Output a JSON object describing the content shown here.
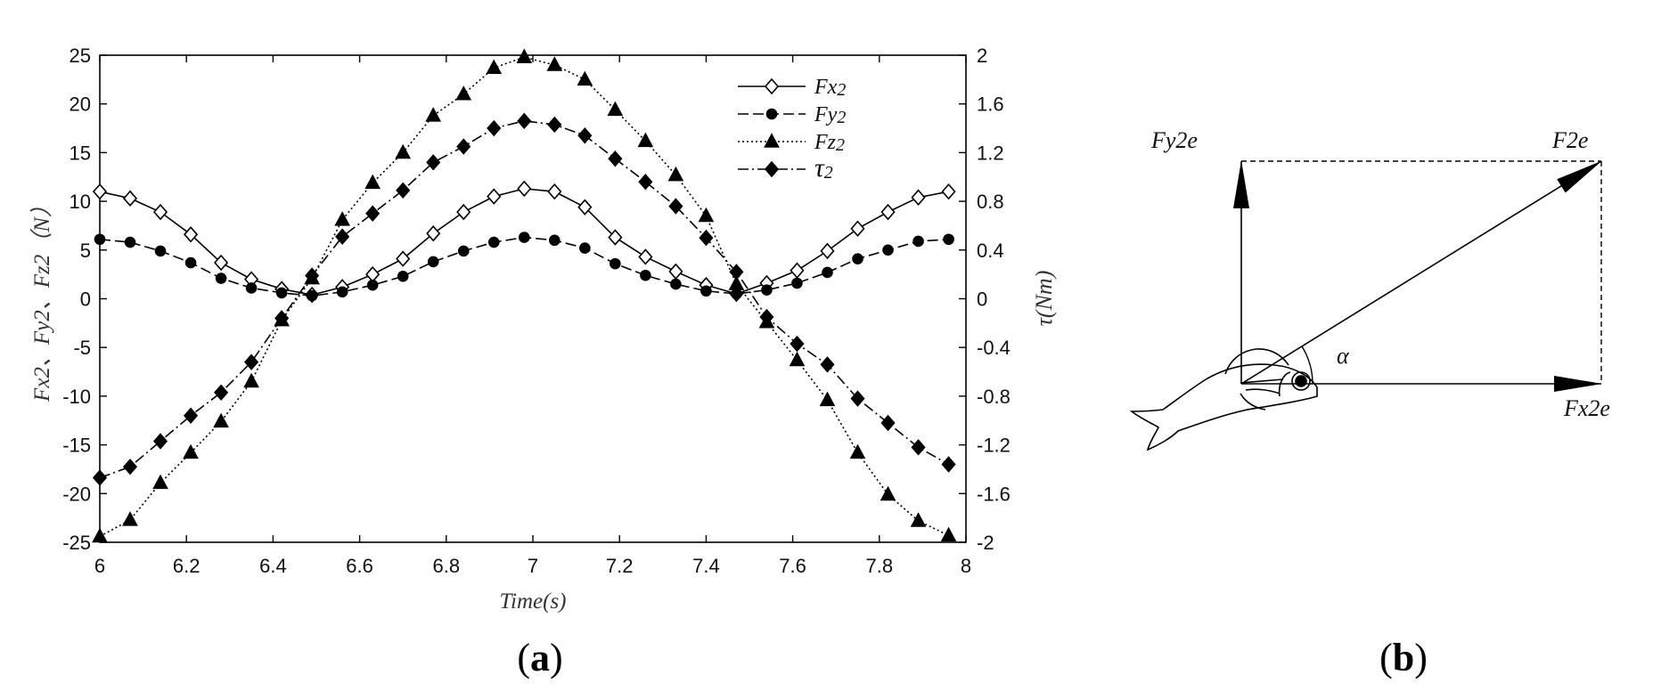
{
  "chart_data": {
    "type": "line",
    "title": "",
    "xlabel": "Time(s)",
    "ylabel": "Fx2、Fy2、Fz2（N）",
    "y2label": "τ(Nm)",
    "xlim": [
      6,
      8
    ],
    "ylim": [
      -25,
      25
    ],
    "y2lim": [
      -2,
      2
    ],
    "grid": false,
    "legend_position": "top-right",
    "x_ticks": [
      6,
      6.2,
      6.4,
      6.6,
      6.8,
      7,
      7.2,
      7.4,
      7.6,
      7.8,
      8
    ],
    "x_tick_labels": [
      "6",
      "6.2",
      "6.4",
      "6.6",
      "6.8",
      "7",
      "7.2",
      "7.4",
      "7.6",
      "7.8",
      "8"
    ],
    "y_ticks": [
      -25,
      -20,
      -15,
      -10,
      -5,
      0,
      5,
      10,
      15,
      20,
      25
    ],
    "y_tick_labels": [
      "-25",
      "-20",
      "-15",
      "-10",
      "-5",
      "0",
      "5",
      "10",
      "15",
      "20",
      "25"
    ],
    "y2_ticks": [
      -2,
      -1.6,
      -1.2,
      -0.8,
      -0.4,
      0,
      0.4,
      0.8,
      1.2,
      1.6,
      2
    ],
    "y2_tick_labels": [
      "-2",
      "-1.6",
      "-1.2",
      "-0.8",
      "-0.4",
      "0",
      "0.4",
      "0.8",
      "1.2",
      "1.6",
      "2"
    ],
    "x": [
      6.0,
      6.07,
      6.14,
      6.21,
      6.28,
      6.35,
      6.42,
      6.49,
      6.56,
      6.63,
      6.7,
      6.77,
      6.84,
      6.91,
      6.98,
      7.05,
      7.12,
      7.19,
      7.26,
      7.33,
      7.4,
      7.47,
      7.54,
      7.61,
      7.68,
      7.75,
      7.82,
      7.89,
      7.96
    ],
    "series": [
      {
        "name": "Fx2",
        "legend_main": "Fx",
        "legend_sub": "2",
        "axis": "left",
        "dash": "",
        "marker": "diamond-open",
        "values": [
          11.0,
          10.3,
          8.9,
          6.6,
          3.7,
          2.0,
          1.0,
          0.4,
          1.2,
          2.5,
          4.1,
          6.7,
          8.9,
          10.5,
          11.3,
          11.0,
          9.4,
          6.3,
          4.3,
          2.8,
          1.4,
          0.5,
          1.6,
          2.9,
          4.9,
          7.2,
          8.9,
          10.4,
          11.0
        ]
      },
      {
        "name": "Fy2",
        "legend_main": "Fy",
        "legend_sub": "2",
        "axis": "left",
        "dash": "12,5",
        "marker": "circle",
        "values": [
          6.1,
          5.8,
          4.9,
          3.7,
          2.1,
          1.1,
          0.6,
          0.3,
          0.7,
          1.4,
          2.3,
          3.8,
          4.9,
          5.8,
          6.3,
          6.0,
          5.2,
          3.6,
          2.4,
          1.5,
          0.8,
          0.5,
          0.9,
          1.6,
          2.7,
          4.1,
          5.0,
          5.9,
          6.1
        ]
      },
      {
        "name": "Fz2",
        "legend_main": "Fz",
        "legend_sub": "2",
        "axis": "left",
        "dash": "2,3",
        "marker": "triangle",
        "values": [
          -24.4,
          -22.7,
          -18.9,
          -15.8,
          -12.6,
          -8.5,
          -2.2,
          2.1,
          8.1,
          11.9,
          15.0,
          18.8,
          21.0,
          23.7,
          24.8,
          24.0,
          22.5,
          19.4,
          16.2,
          12.7,
          8.5,
          1.5,
          -2.4,
          -6.3,
          -10.4,
          -15.8,
          -20.1,
          -22.8,
          -24.3
        ]
      },
      {
        "name": "τ2",
        "legend_main": "τ",
        "legend_sub": "2",
        "axis": "right",
        "dash": "12,4,2,4",
        "marker": "diamond",
        "values": [
          -1.47,
          -1.38,
          -1.17,
          -0.96,
          -0.77,
          -0.52,
          -0.16,
          0.19,
          0.51,
          0.7,
          0.89,
          1.12,
          1.25,
          1.4,
          1.46,
          1.43,
          1.34,
          1.15,
          0.96,
          0.76,
          0.5,
          0.22,
          -0.15,
          -0.37,
          -0.54,
          -0.82,
          -1.02,
          -1.22,
          -1.36
        ]
      }
    ]
  },
  "panel_a_label": {
    "open": "(",
    "letter": "a",
    "close": ")"
  },
  "panel_b_label": {
    "open": "(",
    "letter": "b",
    "close": ")"
  },
  "diagram": {
    "label_fy": "Fy2e",
    "label_f": "F2e",
    "label_fx": "Fx2e",
    "label_angle": "α"
  }
}
